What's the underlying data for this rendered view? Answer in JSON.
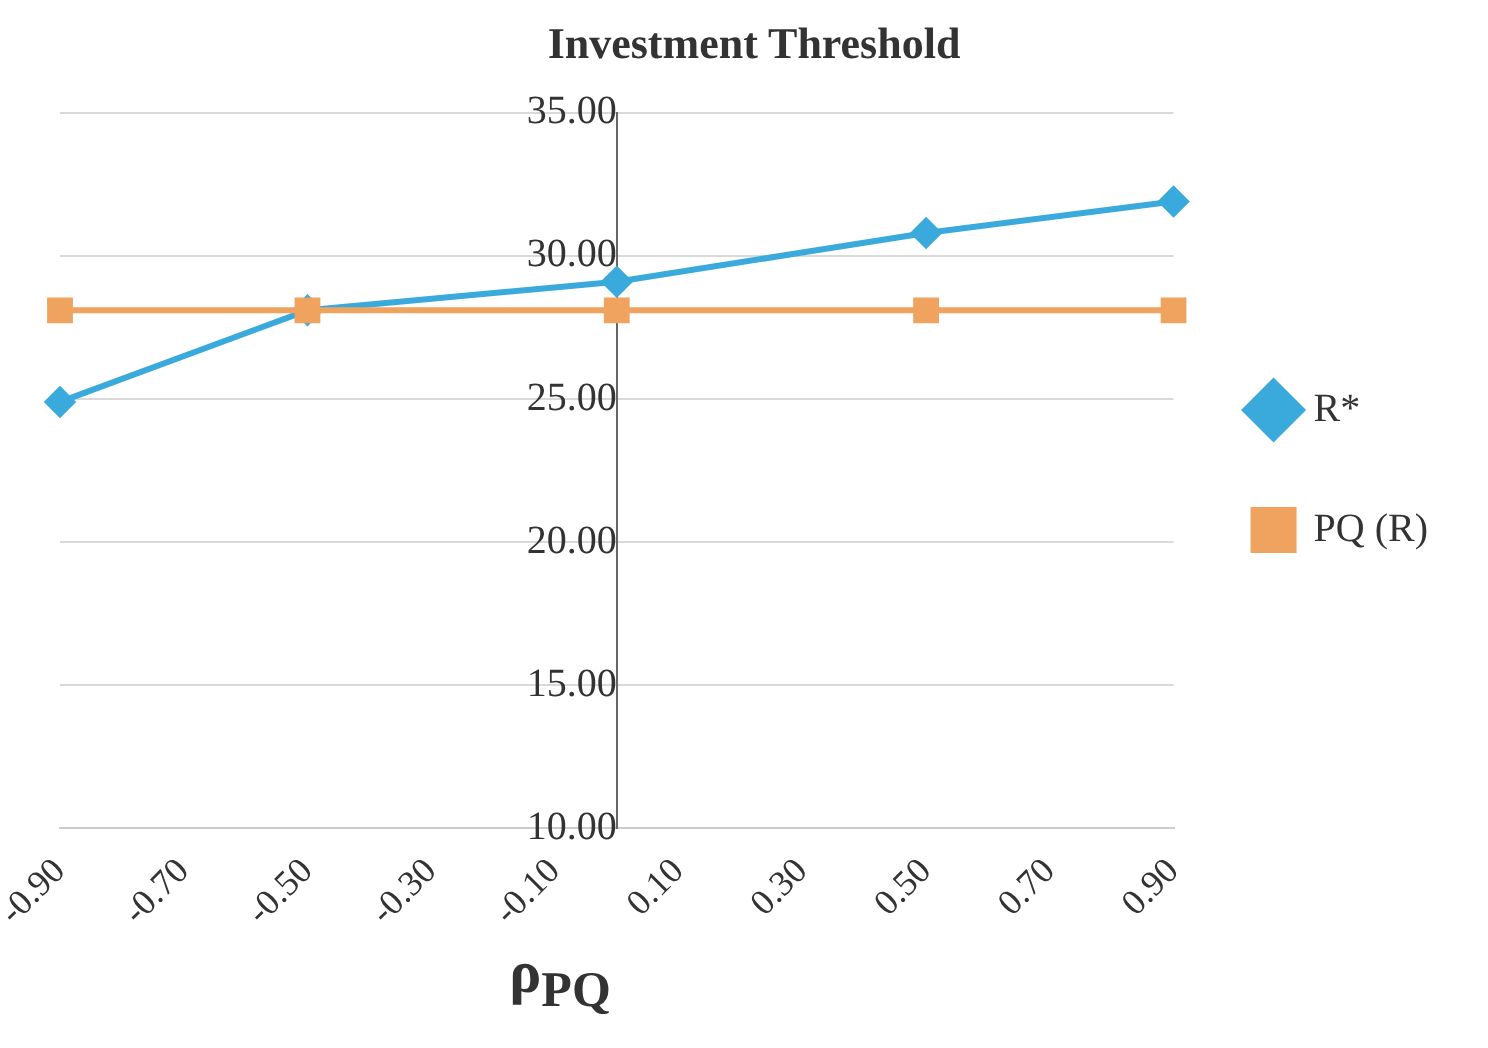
{
  "chart_data": {
    "type": "line",
    "title": "Investment Threshold",
    "xlabel": "ρ$_{PQ}$",
    "x": [
      -0.9,
      -0.5,
      0,
      0.5,
      0.9
    ],
    "series": [
      {
        "name": "R*",
        "color": "#3aa9dc",
        "marker": "diamond",
        "values": [
          24.9,
          28.1,
          29.1,
          30.8,
          31.9
        ]
      },
      {
        "name": "PQ (R)",
        "color": "#f0a35e",
        "marker": "square",
        "values": [
          28.1,
          28.1,
          28.1,
          28.1,
          28.1
        ]
      }
    ],
    "xlim": [
      -0.9,
      0.9
    ],
    "xticks": [
      {
        "value": -0.9,
        "label": "-0.90"
      },
      {
        "value": -0.7,
        "label": "-0.70"
      },
      {
        "value": -0.5,
        "label": "-0.50"
      },
      {
        "value": -0.3,
        "label": "-0.30"
      },
      {
        "value": -0.1,
        "label": "-0.10"
      },
      {
        "value": 0.1,
        "label": "0.10"
      },
      {
        "value": 0.3,
        "label": "0.30"
      },
      {
        "value": 0.5,
        "label": "0.50"
      },
      {
        "value": 0.7,
        "label": "0.70"
      },
      {
        "value": 0.9,
        "label": "0.90"
      }
    ],
    "ylim": [
      10,
      35
    ],
    "yticks": [
      {
        "value": 10,
        "label": "10.00"
      },
      {
        "value": 15,
        "label": "15.00"
      },
      {
        "value": 20,
        "label": "20.00"
      },
      {
        "value": 25,
        "label": "25.00"
      },
      {
        "value": 30,
        "label": "30.00"
      },
      {
        "value": 35,
        "label": "35.00"
      }
    ],
    "grid": "y",
    "legend": "right",
    "line_style": "solid"
  }
}
